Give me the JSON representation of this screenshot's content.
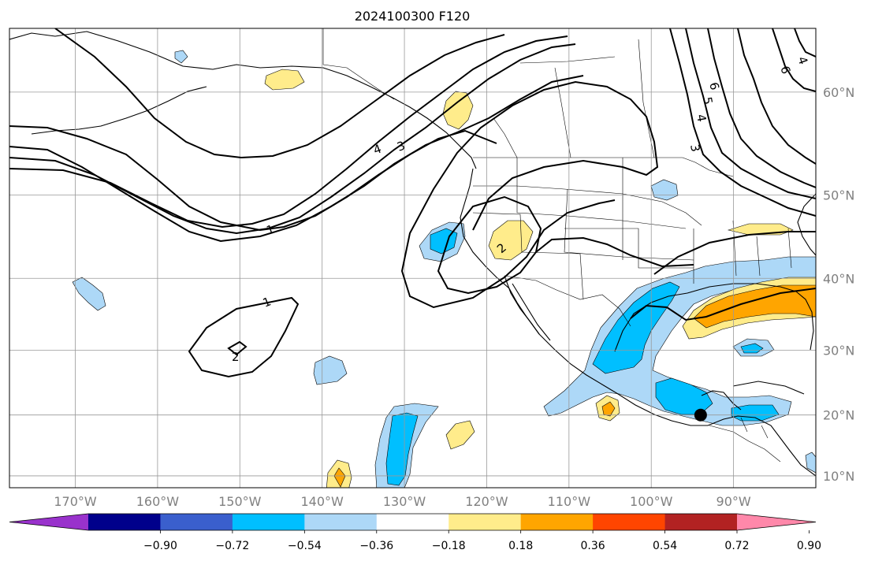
{
  "chart_data": {
    "type": "map-contour",
    "title": "2024100300 F120",
    "lon_range": [
      -178,
      -80
    ],
    "lat_range": [
      8,
      65
    ],
    "lon_ticks": [
      {
        "lon": -170,
        "label": "170°W"
      },
      {
        "lon": -160,
        "label": "160°W"
      },
      {
        "lon": -150,
        "label": "150°W"
      },
      {
        "lon": -140,
        "label": "140°W"
      },
      {
        "lon": -130,
        "label": "130°W"
      },
      {
        "lon": -120,
        "label": "120°W"
      },
      {
        "lon": -110,
        "label": "110°W"
      },
      {
        "lon": -100,
        "label": "100°W"
      },
      {
        "lon": -90,
        "label": "90°W"
      }
    ],
    "lat_ticks": [
      {
        "lat": 60,
        "label": "60°N"
      },
      {
        "lat": 50,
        "label": "50°N"
      },
      {
        "lat": 40,
        "label": "40°N"
      },
      {
        "lat": 30,
        "label": "30°N"
      },
      {
        "lat": 20,
        "label": "20°N"
      },
      {
        "lat": 10,
        "label": "10°N"
      }
    ],
    "grid": true,
    "colorbar": {
      "orientation": "horizontal",
      "extend": "both",
      "colors": [
        "#9932cc",
        "#00008b",
        "#3a5fcd",
        "#00bfff",
        "#add8f7",
        "#ffffff",
        "#ffec8b",
        "#ffa500",
        "#ff4500",
        "#b22222",
        "#ff88aa"
      ],
      "tick_labels": [
        "−0.90",
        "−0.72",
        "−0.54",
        "−0.36",
        "−0.18",
        "0.18",
        "0.36",
        "0.54",
        "0.72",
        "0.90"
      ]
    },
    "contour_labels": [
      "1",
      "2",
      "3",
      "4",
      "5",
      "6"
    ],
    "marker": {
      "lon": -94,
      "lat": 20,
      "color": "#000000"
    }
  }
}
